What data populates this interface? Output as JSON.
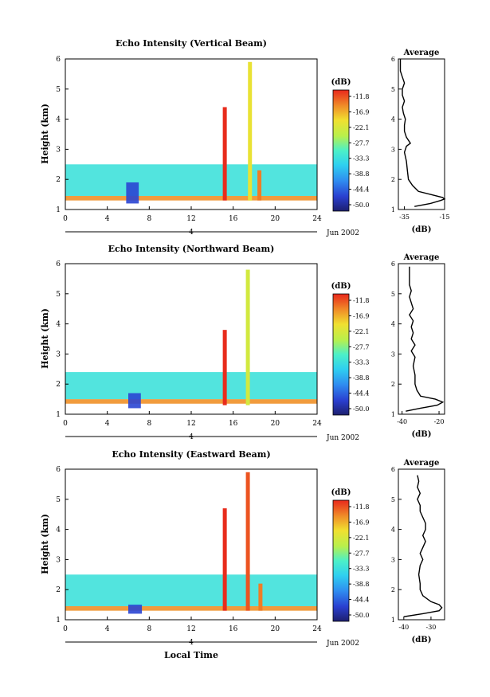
{
  "figure": {
    "xlabel": "Local Time",
    "day_label": "4",
    "date_label": "Jun 2002",
    "colorbar_unit": "(dB)",
    "colorbar_ticks": [
      "-11.8",
      "-16.9",
      "-22.1",
      "-27.7",
      "-33.3",
      "-38.8",
      "-44.4",
      "-50.0"
    ],
    "avg_title": "Average",
    "avg_xlabel": "(dB)"
  },
  "chart_data": [
    {
      "type": "heatmap",
      "title": "Echo Intensity (Vertical Beam)",
      "ylabel": "Height (km)",
      "x_ticks": [
        0,
        4,
        8,
        12,
        16,
        20,
        24
      ],
      "y_ticks": [
        1,
        2,
        3,
        4,
        5,
        6
      ],
      "xlim": [
        0,
        24
      ],
      "ylim": [
        1,
        6
      ],
      "colorbar": {
        "min": -50.0,
        "max": -11.8,
        "unit": "dB"
      },
      "features": [
        {
          "t_start": 0,
          "t_end": 24,
          "h_base": 1.3,
          "h_top": 1.45,
          "db": -17
        },
        {
          "t_start": 0,
          "t_end": 24,
          "h_base": 1.45,
          "h_top": 2.5,
          "db": -33
        },
        {
          "t_start": 5.8,
          "t_end": 7.0,
          "h_base": 1.2,
          "h_top": 1.9,
          "db": -45
        },
        {
          "t_center": 15.2,
          "h_top": 4.4,
          "db": -12
        },
        {
          "t_center": 17.6,
          "h_top": 5.9,
          "db": -22
        },
        {
          "t_center": 18.5,
          "h_top": 2.3,
          "db": -16
        }
      ]
    },
    {
      "type": "heatmap",
      "title": "Echo Intensity (Northward Beam)",
      "ylabel": "Height (km)",
      "x_ticks": [
        0,
        4,
        8,
        12,
        16,
        20,
        24
      ],
      "y_ticks": [
        1,
        2,
        3,
        4,
        5,
        6
      ],
      "xlim": [
        0,
        24
      ],
      "ylim": [
        1,
        6
      ],
      "colorbar": {
        "min": -50.0,
        "max": -11.8,
        "unit": "dB"
      },
      "features": [
        {
          "t_start": 0,
          "t_end": 24,
          "h_base": 1.35,
          "h_top": 1.5,
          "db": -17
        },
        {
          "t_start": 0,
          "t_end": 24,
          "h_base": 1.5,
          "h_top": 2.4,
          "db": -33
        },
        {
          "t_start": 6.0,
          "t_end": 7.2,
          "h_base": 1.2,
          "h_top": 1.7,
          "db": -45
        },
        {
          "t_center": 15.2,
          "h_top": 3.8,
          "db": -12
        },
        {
          "t_center": 17.4,
          "h_top": 5.8,
          "db": -24
        }
      ]
    },
    {
      "type": "heatmap",
      "title": "Echo Intensity (Eastward Beam)",
      "ylabel": "Height (km)",
      "x_ticks": [
        0,
        4,
        8,
        12,
        16,
        20,
        24
      ],
      "y_ticks": [
        1,
        2,
        3,
        4,
        5,
        6
      ],
      "xlim": [
        0,
        24
      ],
      "ylim": [
        1,
        6
      ],
      "colorbar": {
        "min": -50.0,
        "max": -11.8,
        "unit": "dB"
      },
      "features": [
        {
          "t_start": 0,
          "t_end": 24,
          "h_base": 1.3,
          "h_top": 1.45,
          "db": -17
        },
        {
          "t_start": 0,
          "t_end": 24,
          "h_base": 1.45,
          "h_top": 2.5,
          "db": -33
        },
        {
          "t_start": 6.0,
          "t_end": 7.3,
          "h_base": 1.2,
          "h_top": 1.5,
          "db": -45
        },
        {
          "t_center": 15.2,
          "h_top": 4.7,
          "db": -12
        },
        {
          "t_center": 17.4,
          "h_top": 5.9,
          "db": -14
        },
        {
          "t_center": 18.6,
          "h_top": 2.2,
          "db": -16
        }
      ]
    }
  ],
  "average_profiles": [
    {
      "xlim": [
        -38,
        -15
      ],
      "x_ticks": [
        -35,
        -15
      ],
      "y_ticks": [
        1,
        2,
        3,
        4,
        5,
        6
      ],
      "heights": [
        1.1,
        1.2,
        1.3,
        1.35,
        1.4,
        1.5,
        1.6,
        1.8,
        2.0,
        2.3,
        2.6,
        2.9,
        3.1,
        3.2,
        3.4,
        3.6,
        3.8,
        4.0,
        4.2,
        4.4,
        4.6,
        4.8,
        5.0,
        5.2,
        5.4,
        5.6,
        5.8,
        6.0
      ],
      "values": [
        -30,
        -22,
        -17,
        -15,
        -16,
        -22,
        -28,
        -31,
        -33,
        -33.5,
        -34,
        -35,
        -34,
        -32,
        -34,
        -35,
        -35,
        -34.5,
        -35.5,
        -36,
        -35,
        -36,
        -36,
        -35,
        -36,
        -37,
        -37,
        -37
      ]
    },
    {
      "xlim": [
        -42,
        -17
      ],
      "x_ticks": [
        -40,
        -20
      ],
      "y_ticks": [
        1,
        2,
        3,
        4,
        5,
        6
      ],
      "heights": [
        1.1,
        1.2,
        1.3,
        1.4,
        1.5,
        1.6,
        1.8,
        2.0,
        2.3,
        2.6,
        2.9,
        3.1,
        3.3,
        3.5,
        3.7,
        3.9,
        4.1,
        4.3,
        4.5,
        4.7,
        4.9,
        5.1,
        5.3,
        5.5,
        5.7,
        5.9
      ],
      "values": [
        -38,
        -30,
        -21,
        -18,
        -22,
        -30,
        -32,
        -33,
        -33,
        -34,
        -33,
        -35,
        -33,
        -35,
        -34,
        -35,
        -34,
        -36,
        -34,
        -35,
        -36,
        -35,
        -36,
        -36,
        -36,
        -36
      ]
    },
    {
      "xlim": [
        -42,
        -25
      ],
      "x_ticks": [
        -40,
        -30
      ],
      "y_ticks": [
        1,
        2,
        3,
        4,
        5,
        6
      ],
      "heights": [
        1.1,
        1.2,
        1.3,
        1.4,
        1.5,
        1.6,
        1.8,
        2.0,
        2.2,
        2.5,
        2.8,
        3.0,
        3.2,
        3.4,
        3.6,
        3.8,
        4.0,
        4.2,
        4.4,
        4.6,
        4.8,
        5.0,
        5.2,
        5.4,
        5.6,
        5.8
      ],
      "values": [
        -40,
        -33,
        -27,
        -26,
        -27,
        -30,
        -33,
        -34,
        -34,
        -34.5,
        -34,
        -33,
        -34,
        -33,
        -32,
        -33,
        -32,
        -32,
        -33,
        -34,
        -34,
        -35,
        -34,
        -35,
        -34.5,
        -35
      ]
    }
  ]
}
